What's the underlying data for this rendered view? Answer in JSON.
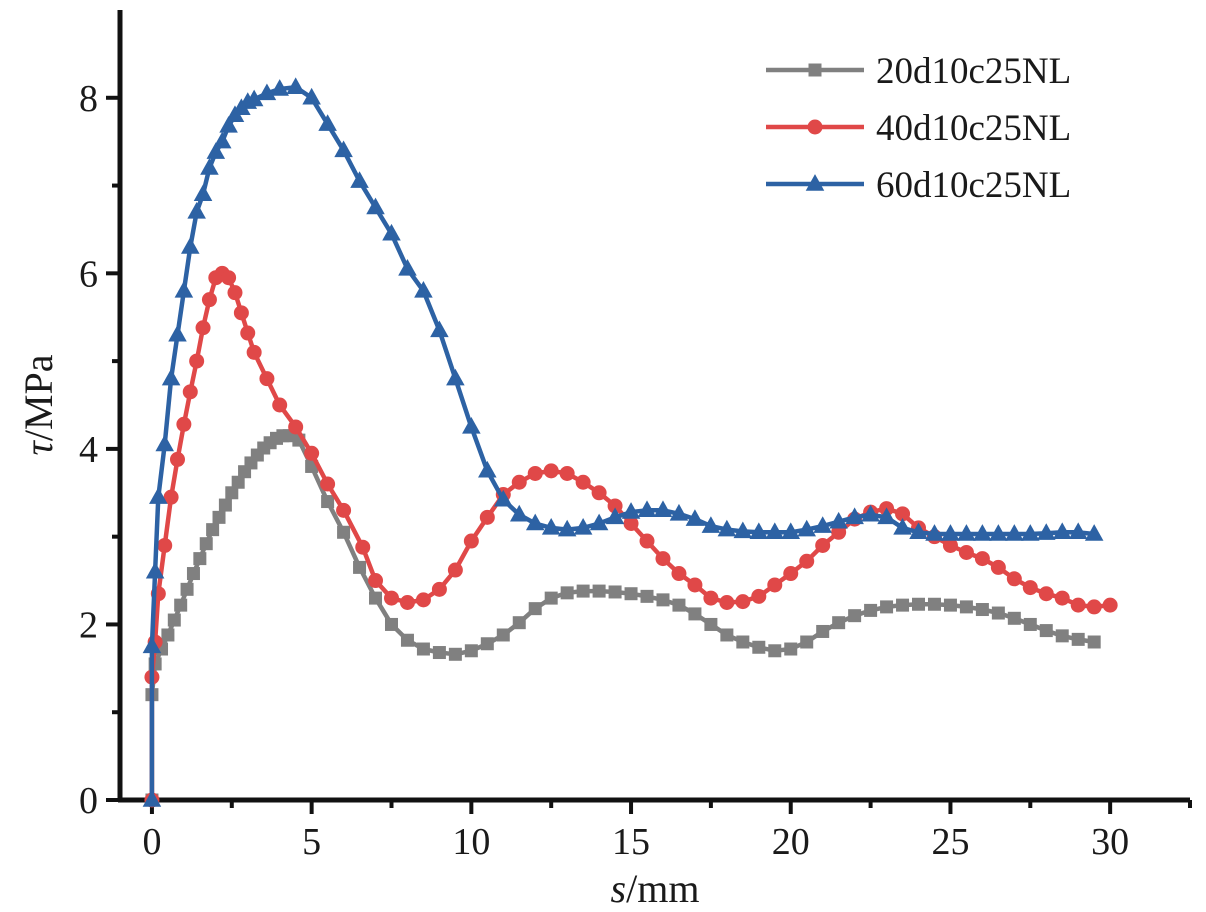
{
  "chart_data": {
    "type": "line",
    "x_axis": {
      "label_var": "s",
      "label_unit": "/mm",
      "range": [
        -1,
        32.5
      ],
      "ticks": [
        0,
        5,
        10,
        15,
        20,
        25,
        30
      ],
      "tick_labels": [
        "0",
        "5",
        "10",
        "15",
        "20",
        "25",
        "30"
      ]
    },
    "y_axis": {
      "label_var": "τ",
      "label_unit": "/MPa",
      "range": [
        0,
        9
      ],
      "ticks": [
        0,
        2,
        4,
        6,
        8
      ],
      "tick_labels": [
        "0",
        "2",
        "4",
        "6",
        "8"
      ]
    },
    "grid": false,
    "legend_position": "top-right",
    "series": [
      {
        "name": "20d10c25NL",
        "color": "#808080",
        "marker": "square",
        "x": [
          0,
          0,
          0.1,
          0.3,
          0.5,
          0.7,
          0.9,
          1.1,
          1.3,
          1.5,
          1.7,
          1.9,
          2.1,
          2.3,
          2.5,
          2.7,
          2.9,
          3.1,
          3.3,
          3.5,
          3.7,
          3.9,
          4.1,
          4.3,
          4.6,
          5.0,
          5.5,
          6.0,
          6.5,
          7.0,
          7.5,
          8.0,
          8.5,
          9.0,
          9.5,
          10.0,
          10.5,
          11.0,
          11.5,
          12.0,
          12.5,
          13.0,
          13.5,
          14.0,
          14.5,
          15.0,
          15.5,
          16.0,
          16.5,
          17.0,
          17.5,
          18.0,
          18.5,
          19.0,
          19.5,
          20.0,
          20.5,
          21.0,
          21.5,
          22.0,
          22.5,
          23.0,
          23.5,
          24.0,
          24.5,
          25.0,
          25.5,
          26.0,
          26.5,
          27.0,
          27.5,
          28.0,
          28.5,
          29.0,
          29.5
        ],
        "y": [
          0,
          1.2,
          1.55,
          1.72,
          1.88,
          2.05,
          2.22,
          2.4,
          2.58,
          2.75,
          2.92,
          3.08,
          3.22,
          3.36,
          3.5,
          3.62,
          3.74,
          3.84,
          3.93,
          4.01,
          4.07,
          4.12,
          4.15,
          4.15,
          4.1,
          3.8,
          3.4,
          3.05,
          2.65,
          2.3,
          2.0,
          1.82,
          1.72,
          1.68,
          1.66,
          1.7,
          1.78,
          1.88,
          2.02,
          2.18,
          2.3,
          2.36,
          2.38,
          2.38,
          2.37,
          2.35,
          2.32,
          2.28,
          2.22,
          2.12,
          2.0,
          1.88,
          1.8,
          1.74,
          1.7,
          1.72,
          1.8,
          1.92,
          2.02,
          2.1,
          2.16,
          2.2,
          2.22,
          2.23,
          2.23,
          2.22,
          2.2,
          2.17,
          2.13,
          2.07,
          2.0,
          1.93,
          1.87,
          1.83,
          1.8
        ]
      },
      {
        "name": "40d10c25NL",
        "color": "#e04848",
        "marker": "circle",
        "x": [
          0,
          0,
          0.1,
          0.2,
          0.4,
          0.6,
          0.8,
          1.0,
          1.2,
          1.4,
          1.6,
          1.8,
          2.0,
          2.2,
          2.4,
          2.6,
          2.8,
          3.0,
          3.2,
          3.6,
          4.0,
          4.5,
          5.0,
          5.5,
          6.0,
          6.6,
          7.0,
          7.5,
          8.0,
          8.5,
          9.0,
          9.5,
          10.0,
          10.5,
          11.0,
          11.5,
          12.0,
          12.5,
          13.0,
          13.5,
          14.0,
          14.5,
          15.0,
          15.5,
          16.0,
          16.5,
          17.0,
          17.5,
          18.0,
          18.5,
          19.0,
          19.5,
          20.0,
          20.5,
          21.0,
          21.5,
          22.0,
          22.5,
          23.0,
          23.5,
          24.0,
          24.5,
          25.0,
          25.5,
          26.0,
          26.5,
          27.0,
          27.5,
          28.0,
          28.5,
          29.0,
          29.5,
          30.0
        ],
        "y": [
          0,
          1.4,
          1.8,
          2.35,
          2.9,
          3.45,
          3.88,
          4.28,
          4.65,
          5.0,
          5.38,
          5.7,
          5.95,
          6.0,
          5.95,
          5.78,
          5.55,
          5.32,
          5.1,
          4.8,
          4.5,
          4.25,
          3.95,
          3.6,
          3.3,
          2.88,
          2.5,
          2.3,
          2.25,
          2.28,
          2.4,
          2.62,
          2.95,
          3.22,
          3.48,
          3.62,
          3.72,
          3.75,
          3.72,
          3.62,
          3.5,
          3.35,
          3.15,
          2.95,
          2.75,
          2.58,
          2.45,
          2.3,
          2.25,
          2.26,
          2.32,
          2.45,
          2.58,
          2.72,
          2.9,
          3.05,
          3.2,
          3.28,
          3.32,
          3.26,
          3.1,
          3.0,
          2.9,
          2.82,
          2.75,
          2.65,
          2.52,
          2.42,
          2.35,
          2.3,
          2.22,
          2.2,
          2.22
        ]
      },
      {
        "name": "60d10c25NL",
        "color": "#2d62a4",
        "marker": "triangle",
        "x": [
          0,
          0,
          0.1,
          0.2,
          0.4,
          0.6,
          0.8,
          1.0,
          1.2,
          1.4,
          1.6,
          1.8,
          2.0,
          2.2,
          2.4,
          2.6,
          2.8,
          3.0,
          3.2,
          3.6,
          4.0,
          4.5,
          5.0,
          5.5,
          6.0,
          6.5,
          7.0,
          7.5,
          8.0,
          8.5,
          9.0,
          9.5,
          10.0,
          10.5,
          11.0,
          11.5,
          12.0,
          12.5,
          13.0,
          13.5,
          14.0,
          14.5,
          15.0,
          15.5,
          16.0,
          16.5,
          17.0,
          17.5,
          18.0,
          18.5,
          19.0,
          19.5,
          20.0,
          20.5,
          21.0,
          21.5,
          22.0,
          22.5,
          23.0,
          23.5,
          24.0,
          24.5,
          25.0,
          25.5,
          26.0,
          26.5,
          27.0,
          27.5,
          28.0,
          28.5,
          29.0,
          29.5
        ],
        "y": [
          0,
          1.75,
          2.6,
          3.45,
          4.05,
          4.8,
          5.3,
          5.8,
          6.3,
          6.7,
          6.9,
          7.2,
          7.38,
          7.5,
          7.68,
          7.8,
          7.88,
          7.95,
          7.98,
          8.05,
          8.1,
          8.12,
          8.0,
          7.7,
          7.4,
          7.05,
          6.75,
          6.45,
          6.05,
          5.8,
          5.35,
          4.8,
          4.25,
          3.75,
          3.42,
          3.25,
          3.15,
          3.1,
          3.08,
          3.1,
          3.15,
          3.22,
          3.28,
          3.3,
          3.3,
          3.26,
          3.2,
          3.12,
          3.08,
          3.06,
          3.05,
          3.05,
          3.05,
          3.08,
          3.12,
          3.17,
          3.22,
          3.25,
          3.22,
          3.1,
          3.05,
          3.03,
          3.03,
          3.03,
          3.03,
          3.03,
          3.03,
          3.03,
          3.04,
          3.05,
          3.05,
          3.03
        ]
      }
    ]
  }
}
